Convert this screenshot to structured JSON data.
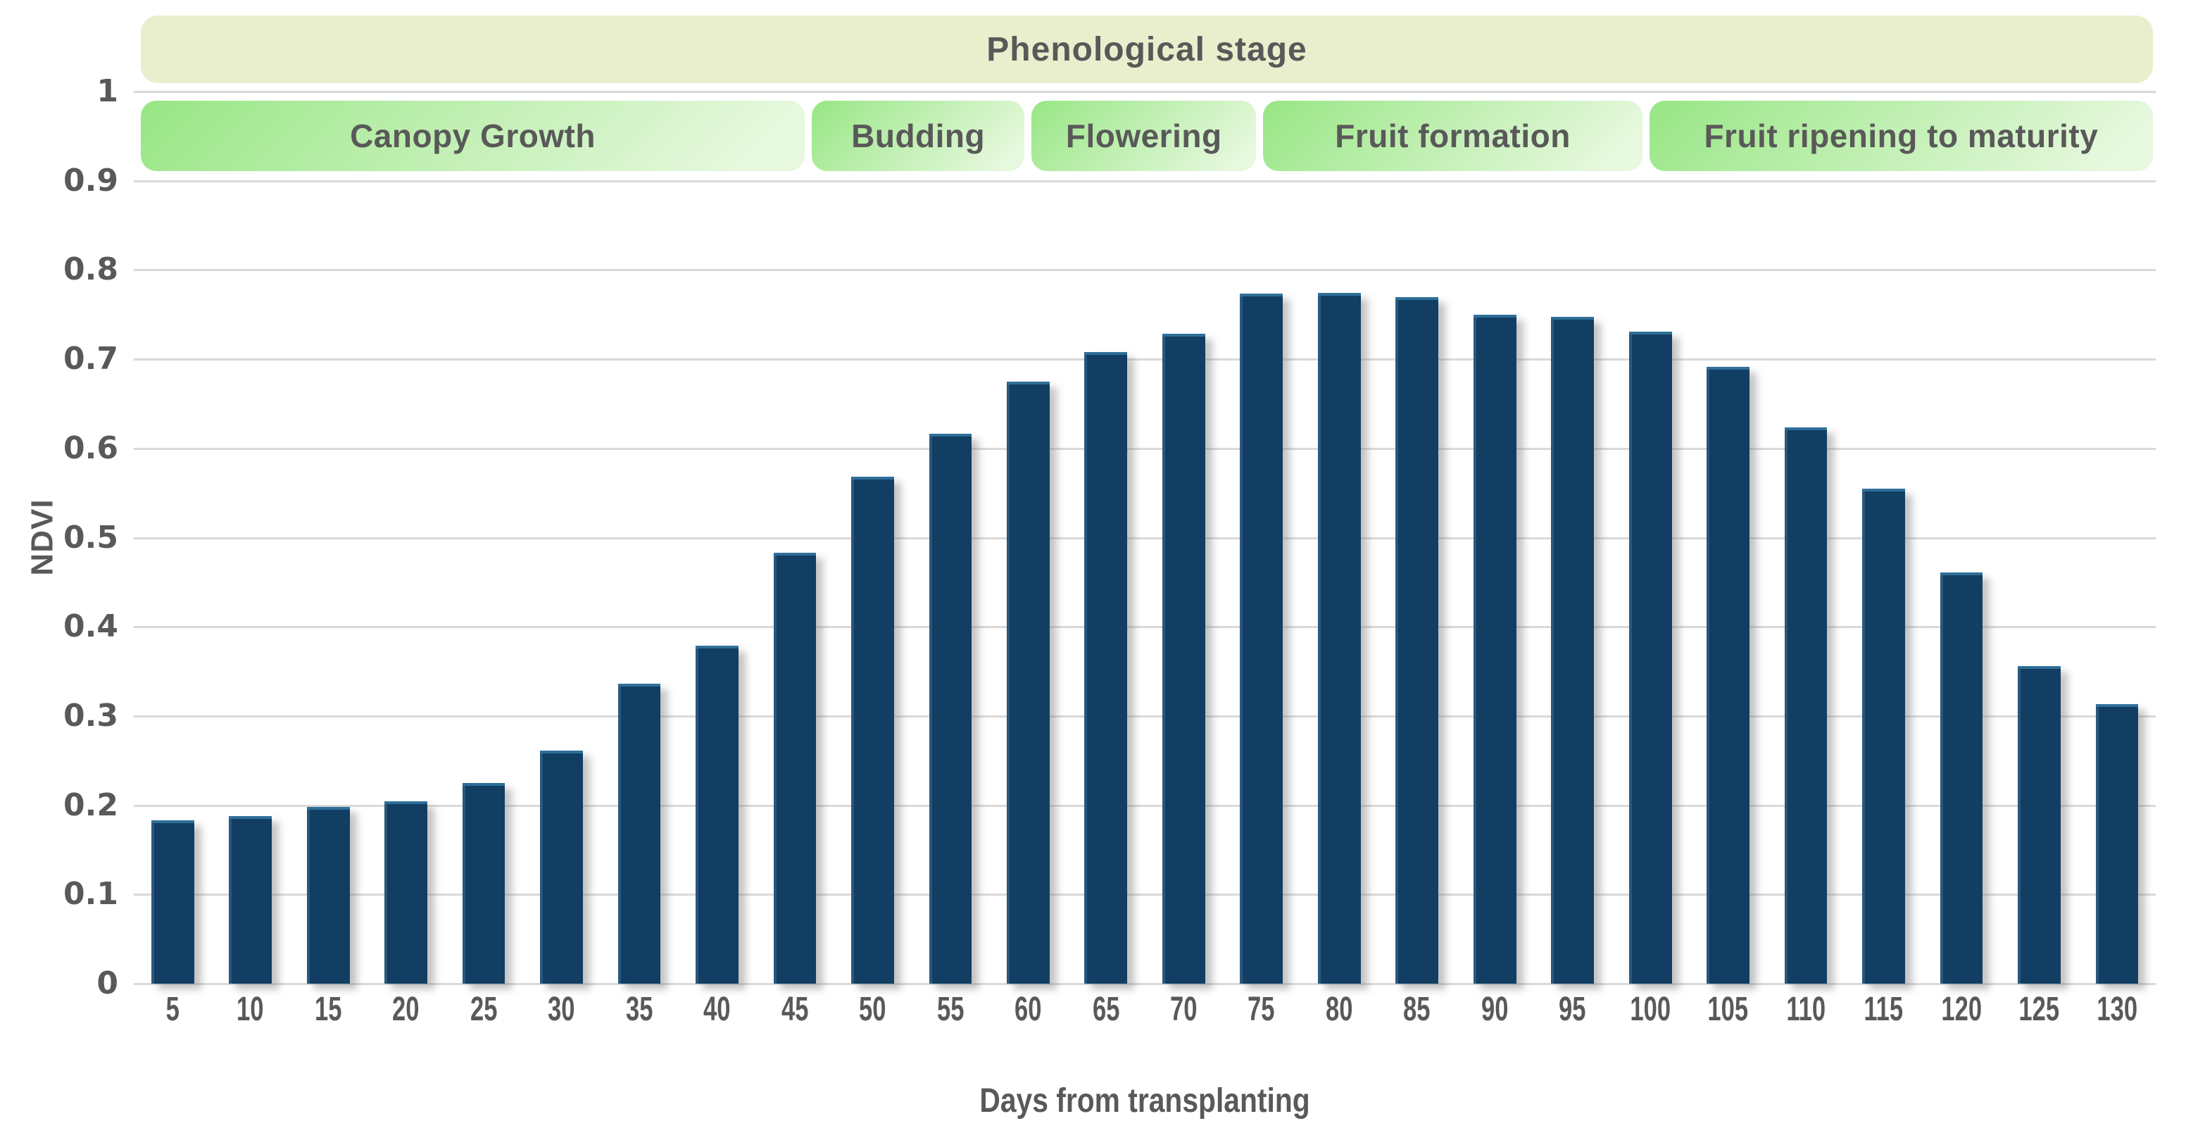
{
  "chart_data": {
    "type": "bar",
    "title": "",
    "xlabel": "Days from transplanting",
    "ylabel": "NDVI",
    "ylim": [
      0,
      1
    ],
    "ytick_step": 0.1,
    "yticks": [
      "1",
      "0.9",
      "0.8",
      "0.7",
      "0.6",
      "0.5",
      "0.4",
      "0.3",
      "0.2",
      "0.1",
      "0"
    ],
    "categories": [
      "5",
      "10",
      "15",
      "20",
      "25",
      "30",
      "35",
      "40",
      "45",
      "50",
      "55",
      "60",
      "65",
      "70",
      "75",
      "80",
      "85",
      "90",
      "95",
      "100",
      "105",
      "110",
      "115",
      "120",
      "125",
      "130"
    ],
    "values": [
      0.18,
      0.185,
      0.195,
      0.201,
      0.222,
      0.258,
      0.333,
      0.376,
      0.48,
      0.565,
      0.613,
      0.672,
      0.705,
      0.725,
      0.77,
      0.771,
      0.766,
      0.747,
      0.744,
      0.728,
      0.688,
      0.62,
      0.552,
      0.458,
      0.353,
      0.31
    ],
    "grid": "horizontal",
    "legend": "none"
  },
  "phenology": {
    "title": "Phenological stage",
    "stages": [
      {
        "label": "Canopy Growth",
        "width_pct": 33.1
      },
      {
        "label": "Budding",
        "width_pct": 10.6
      },
      {
        "label": "Flowering",
        "width_pct": 11.2
      },
      {
        "label": "Fruit formation",
        "width_pct": 18.9
      },
      {
        "label": "Fruit ripening to maturity",
        "width_pct": 25.1
      }
    ]
  },
  "colors": {
    "bar": "#113e62",
    "bar_top_highlight": "#2e6f99",
    "grid": "#d9d9d9",
    "text": "#595959",
    "title_band_bg": "#e9efcd",
    "stage_gradient_start": "#98e685",
    "stage_gradient_end": "#e6f8dd"
  }
}
